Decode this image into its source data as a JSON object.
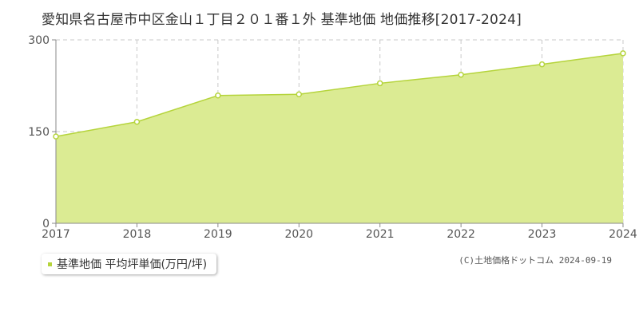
{
  "title": "愛知県名古屋市中区金山１丁目２０１番１外 基準地価 地価推移[2017-2024]",
  "legend": {
    "label": "基準地価 平均坪単価(万円/坪)"
  },
  "credit": "(C)土地価格ドットコム 2024-09-19",
  "colors": {
    "fill": "#dbeb93",
    "line": "#b5d43b",
    "grid": "#c8c8c8",
    "axis": "#888888"
  },
  "chart_data": {
    "type": "area",
    "x": [
      "2017",
      "2018",
      "2019",
      "2020",
      "2021",
      "2022",
      "2023",
      "2024"
    ],
    "series": [
      {
        "name": "基準地価 平均坪単価(万円/坪)",
        "values": [
          142,
          166,
          209,
          211,
          229,
          243,
          260,
          278
        ]
      }
    ],
    "ylim": [
      0,
      300
    ],
    "yticks": [
      "0",
      "150",
      "300"
    ],
    "grid": true,
    "legend_position": "bottom-left"
  }
}
